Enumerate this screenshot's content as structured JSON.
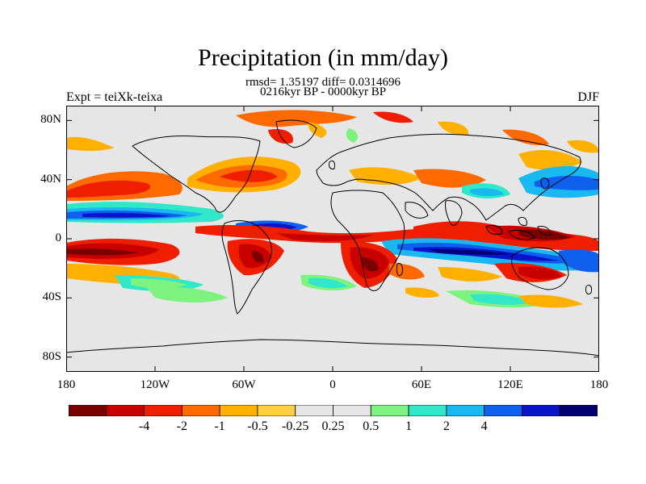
{
  "title": "Precipitation (in mm/day)",
  "stats_line": "rmsd= 1.35197 diff= 0.0314696",
  "period_line": "0216kyr BP - 0000kyr BP",
  "experiment": "Expt = teiXk-teixa",
  "season": "DJF",
  "lat_labels": [
    "80N",
    "40N",
    "0",
    "40S",
    "80S"
  ],
  "lat_values": [
    80,
    40,
    0,
    -40,
    -80
  ],
  "lon_labels": [
    "180",
    "120W",
    "60W",
    "0",
    "60E",
    "120E",
    "180"
  ],
  "lon_values": [
    -180,
    -120,
    -60,
    0,
    60,
    120,
    180
  ],
  "colorbar": {
    "colors": [
      "#7a0000",
      "#c80000",
      "#f01e00",
      "#ff6a00",
      "#ffb000",
      "#ffcf40",
      "#e6e6e6",
      "#e6e6e6",
      "#7ef27e",
      "#30e8c8",
      "#18b8f0",
      "#1060f0",
      "#0a14c8",
      "#000070"
    ],
    "labels": [
      "-4",
      "-2",
      "-1",
      "-0.5",
      "-0.25",
      "0.25",
      "0.5",
      "1",
      "2",
      "4"
    ]
  },
  "colors": {
    "background": "#e6e6e6",
    "coast": "#000000"
  }
}
